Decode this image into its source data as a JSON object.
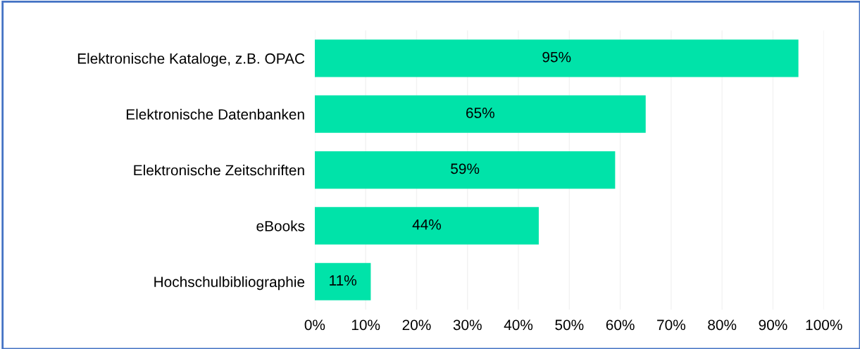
{
  "chart_data": {
    "type": "bar",
    "orientation": "horizontal",
    "categories": [
      "Elektronische Kataloge, z.B. OPAC",
      "Elektronische Datenbanken",
      "Elektronische Zeitschriften",
      "eBooks",
      "Hochschulbibliographie"
    ],
    "values": [
      95,
      65,
      59,
      44,
      11
    ],
    "value_labels": [
      "95%",
      "65%",
      "59%",
      "44%",
      "11%"
    ],
    "color": "#00e3a9",
    "xlim": [
      0,
      100
    ],
    "xticks": [
      {
        "value": 0,
        "label": "0%"
      },
      {
        "value": 10,
        "label": "10%"
      },
      {
        "value": 20,
        "label": "20%"
      },
      {
        "value": 30,
        "label": "30%"
      },
      {
        "value": 40,
        "label": "40%"
      },
      {
        "value": 50,
        "label": "50%"
      },
      {
        "value": 60,
        "label": "60%"
      },
      {
        "value": 70,
        "label": "70%"
      },
      {
        "value": 80,
        "label": "80%"
      },
      {
        "value": 90,
        "label": "90%"
      },
      {
        "value": 100,
        "label": "100%"
      }
    ],
    "grid": "x"
  }
}
